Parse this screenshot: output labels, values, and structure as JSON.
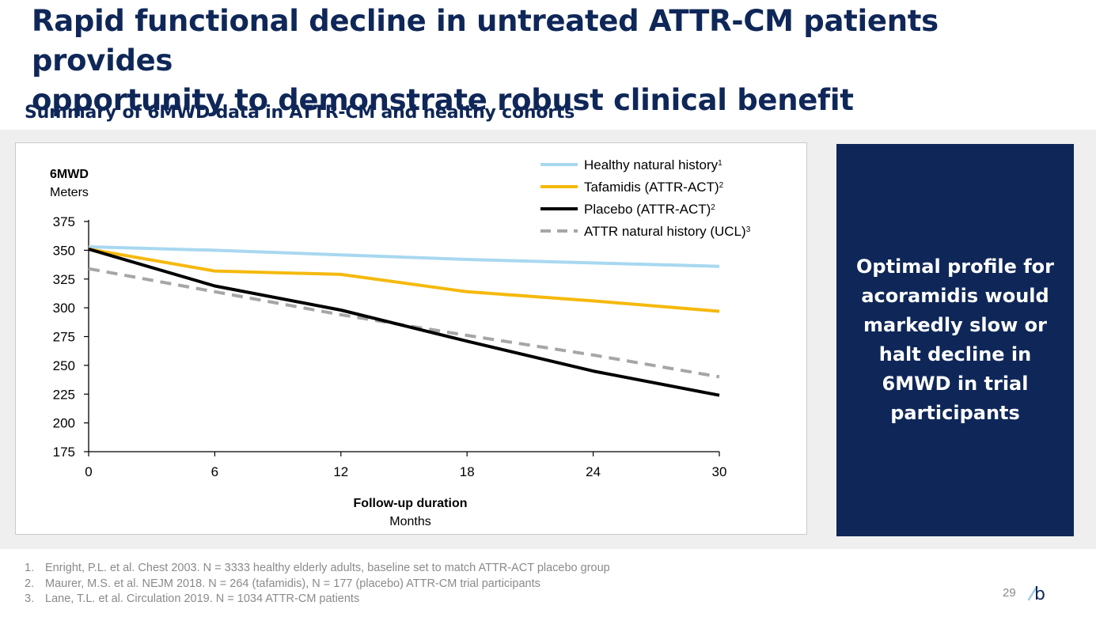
{
  "slide": {
    "title_line1": "Rapid functional decline in untreated ATTR-CM patients provides",
    "title_line2": "opportunity to demonstrate robust clinical benefit",
    "subtitle": "Summary of 6MWD data in ATTR-CM and healthy cohorts",
    "callout": "Optimal profile for acoramidis would markedly slow or halt decline in 6MWD in trial participants",
    "page_number": "29",
    "logo_glyph": "b",
    "footnotes": [
      {
        "num": "1.",
        "text": "Enright, P.L. et al. Chest 2003. N = 3333 healthy elderly adults, baseline set to match ATTR-ACT placebo group"
      },
      {
        "num": "2.",
        "text": "Maurer, M.S. et al. NEJM 2018. N = 264 (tafamidis), N = 177 (placebo) ATTR-CM trial participants"
      },
      {
        "num": "3.",
        "text": "Lane, T.L. et al. Circulation 2019. N = 1034 ATTR-CM patients"
      }
    ],
    "colors": {
      "navy": "#0f2758",
      "band": "#efefef",
      "footnote": "#8a8a8a"
    }
  },
  "chart_data": {
    "type": "line",
    "ylabel": "6MWD",
    "ylabel_unit": "Meters",
    "xlabel": "Follow-up duration",
    "xlabel_unit": "Months",
    "xlim": [
      0,
      30
    ],
    "ylim": [
      175,
      375
    ],
    "xticks": [
      0,
      6,
      12,
      18,
      24,
      30
    ],
    "yticks": [
      175,
      200,
      225,
      250,
      275,
      300,
      325,
      350,
      375
    ],
    "grid": false,
    "legend_position": "top-right",
    "series": [
      {
        "name": "Healthy natural history",
        "sup": "1",
        "color": "#a8d8f0",
        "dash": "none",
        "x": [
          0,
          6,
          12,
          18,
          24,
          30
        ],
        "y": [
          353,
          350,
          346,
          342,
          339,
          336
        ]
      },
      {
        "name": "Tafamidis (ATTR-ACT)",
        "sup": "2",
        "color": "#f5b90d",
        "dash": "none",
        "x": [
          0,
          6,
          12,
          18,
          24,
          30
        ],
        "y": [
          351,
          332,
          329,
          314,
          306,
          297
        ]
      },
      {
        "name": "Placebo (ATTR-ACT)",
        "sup": "2",
        "color": "#000000",
        "dash": "none",
        "x": [
          0,
          6,
          12,
          18,
          24,
          30
        ],
        "y": [
          351,
          319,
          298,
          271,
          245,
          224
        ]
      },
      {
        "name": "ATTR natural history (UCL)",
        "sup": "3",
        "color": "#a6a6a6",
        "dash": "14,9",
        "x": [
          0,
          6,
          12,
          18,
          24,
          30
        ],
        "y": [
          334,
          314,
          294,
          276,
          259,
          240
        ]
      }
    ]
  }
}
